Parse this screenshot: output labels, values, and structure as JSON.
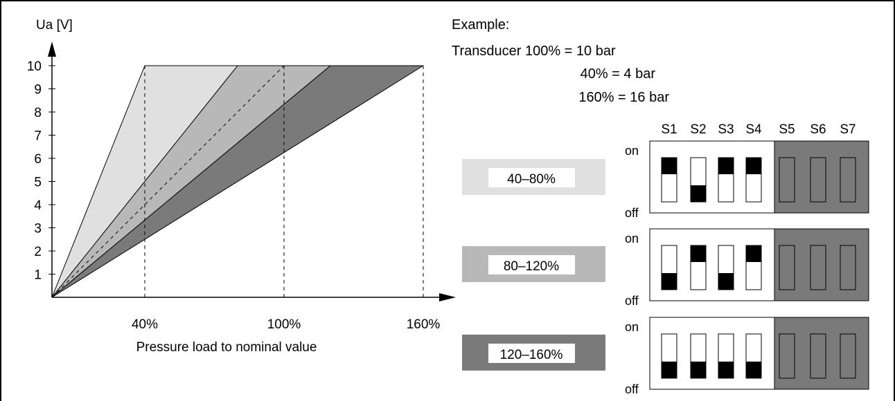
{
  "chart_data": {
    "type": "line",
    "ylabel": "Ua [V]",
    "xlabel": "Pressure load to nominal value",
    "y_ticks": [
      "1",
      "2",
      "3",
      "4",
      "5",
      "6",
      "7",
      "8",
      "9",
      "10"
    ],
    "x_ticks": [
      "40%",
      "100%",
      "160%"
    ],
    "ylim": [
      0,
      10
    ],
    "xlim": [
      0,
      160
    ],
    "bands": [
      {
        "range": "40–80%",
        "x_at_10V": [
          40,
          80
        ],
        "color": "#e0e0e0"
      },
      {
        "range": "80–120%",
        "x_at_10V": [
          80,
          120
        ],
        "color": "#b8b8b8"
      },
      {
        "range": "120–160%",
        "x_at_10V": [
          120,
          160
        ],
        "color": "#7a7a7a"
      }
    ],
    "dashed_reference_line": {
      "x_at_10V": 100
    }
  },
  "example": {
    "title": "Example:",
    "line1": "Transducer 100% = 10 bar",
    "line2": "40% = 4 bar",
    "line3": "160% = 16 bar"
  },
  "switches": {
    "labels": [
      "S1",
      "S2",
      "S3",
      "S4",
      "S5",
      "S6",
      "S7"
    ],
    "on_label": "on",
    "off_label": "off",
    "panel_color": "#7a7a7a",
    "rows": [
      {
        "range_label": "40–80%",
        "color": "#e0e0e0",
        "states": [
          "on",
          "off",
          "on",
          "on"
        ]
      },
      {
        "range_label": "80–120%",
        "color": "#b8b8b8",
        "states": [
          "off",
          "on",
          "off",
          "on"
        ]
      },
      {
        "range_label": "120–160%",
        "color": "#7a7a7a",
        "states": [
          "off",
          "off",
          "off",
          "off"
        ]
      }
    ]
  }
}
